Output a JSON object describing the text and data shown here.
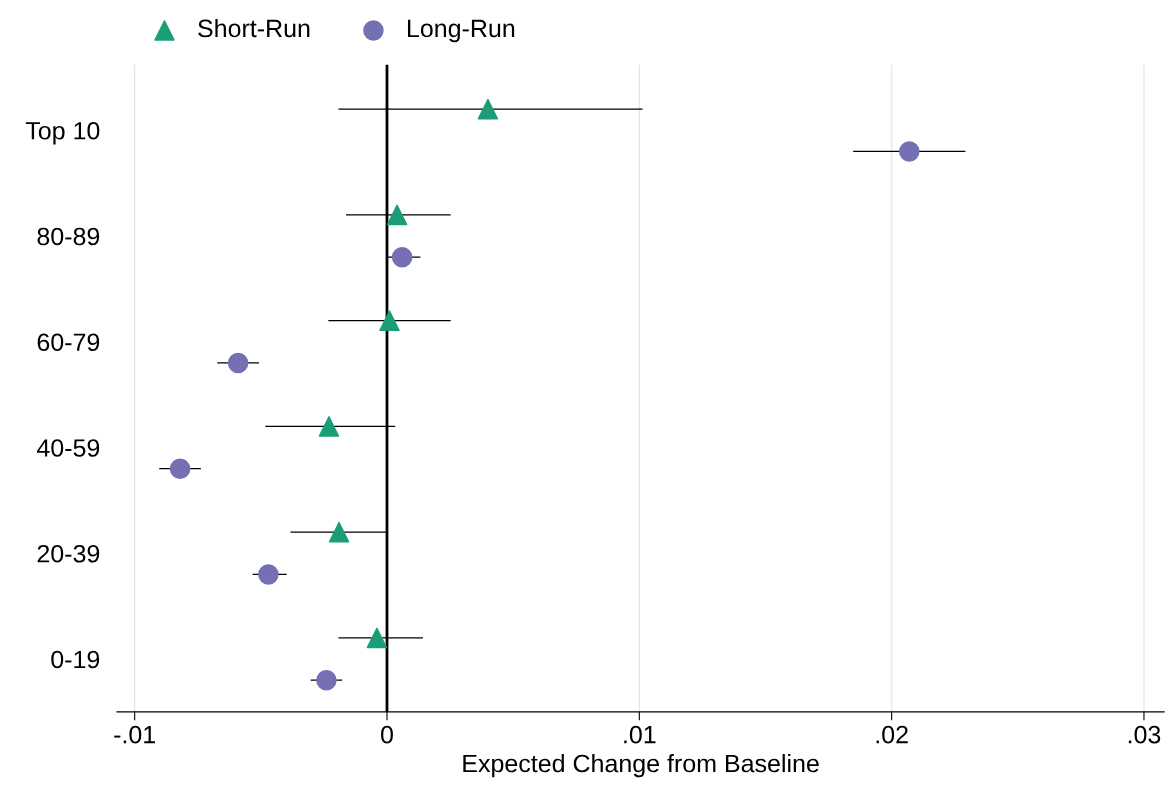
{
  "chart_data": {
    "type": "scatter",
    "orientation": "horizontal",
    "xlabel": "Expected Change from Baseline",
    "categories": [
      "Top 10",
      "80-89",
      "60-79",
      "40-59",
      "20-39",
      "0-19"
    ],
    "series": [
      {
        "name": "Short-Run",
        "color": "#1b9e77",
        "marker": "triangle",
        "values": [
          0.004,
          0.0004,
          0.0001,
          -0.0023,
          -0.0019,
          -0.0004
        ],
        "errors": [
          [
            -0.0019,
            0.0101
          ],
          [
            -0.0016,
            0.0025
          ],
          [
            -0.0023,
            0.0025
          ],
          [
            -0.0048,
            0.0003
          ],
          [
            -0.0038,
            0.0
          ],
          [
            -0.0019,
            0.0014
          ]
        ]
      },
      {
        "name": "Long-Run",
        "color": "#7570b3",
        "marker": "circle",
        "values": [
          0.0207,
          0.0006,
          -0.0059,
          -0.0082,
          -0.0047,
          -0.0024
        ],
        "errors": [
          [
            0.0185,
            0.0229
          ],
          [
            0.0,
            0.0013
          ],
          [
            -0.0067,
            -0.0051
          ],
          [
            -0.009,
            -0.0074
          ],
          [
            -0.0053,
            -0.004
          ],
          [
            -0.003,
            -0.0018
          ]
        ]
      }
    ],
    "xlim": [
      -0.0107,
      0.0308
    ],
    "xticks": [
      {
        "value": -0.01,
        "label": "-.01"
      },
      0,
      {
        "value": 0.01,
        "label": ".01"
      },
      {
        "value": 0.02,
        "label": ".02"
      },
      {
        "value": 0.03,
        "label": ".03"
      }
    ],
    "ref_lines": [
      {
        "axis": "x",
        "value": 0,
        "color": "#000000"
      }
    ],
    "grid": "x",
    "legend": "top left"
  }
}
